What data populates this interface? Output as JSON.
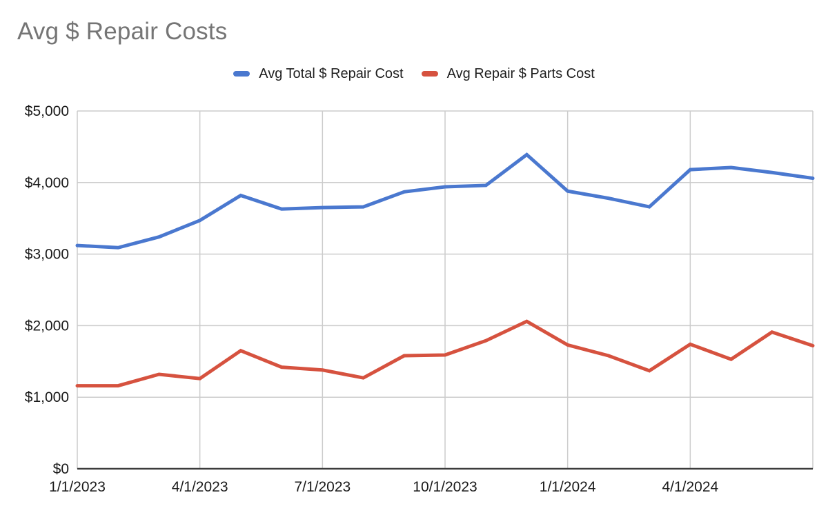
{
  "header": {
    "title": "Avg $ Repair Costs"
  },
  "styles": {
    "background": "#ffffff",
    "title_color": "#757575",
    "axis_label_color": "#1a1a1a",
    "gridline_color": "#cccccc",
    "axis_line_color": "#3c3c3c"
  },
  "chart_data": {
    "type": "line",
    "title": "Avg $ Repair Costs",
    "x": [
      "1/1/2023",
      "2/1/2023",
      "3/1/2023",
      "4/1/2023",
      "5/1/2023",
      "6/1/2023",
      "7/1/2023",
      "8/1/2023",
      "9/1/2023",
      "10/1/2023",
      "11/1/2023",
      "12/1/2023",
      "1/1/2024",
      "2/1/2024",
      "3/1/2024",
      "4/1/2024",
      "5/1/2024",
      "6/1/2024",
      "7/1/2024"
    ],
    "series": [
      {
        "name": "Avg Total $ Repair Cost",
        "color": "#4a78cf",
        "values": [
          3120,
          3090,
          3240,
          3470,
          3820,
          3630,
          3650,
          3660,
          3870,
          3940,
          3960,
          4390,
          3880,
          3780,
          3660,
          4180,
          4210,
          4140,
          4060
        ]
      },
      {
        "name": "Avg Repair $ Parts Cost",
        "color": "#d6523f",
        "values": [
          1160,
          1160,
          1320,
          1260,
          1650,
          1420,
          1380,
          1270,
          1580,
          1590,
          1790,
          2060,
          1730,
          1580,
          1370,
          1740,
          1530,
          1910,
          1720
        ]
      }
    ],
    "xlabel": "",
    "ylabel": "",
    "ylim": [
      0,
      5000
    ],
    "y_ticks": [
      {
        "value": 0,
        "label": "$0"
      },
      {
        "value": 1000,
        "label": "$1,000"
      },
      {
        "value": 2000,
        "label": "$2,000"
      },
      {
        "value": 3000,
        "label": "$3,000"
      },
      {
        "value": 4000,
        "label": "$4,000"
      },
      {
        "value": 5000,
        "label": "$5,000"
      }
    ],
    "x_ticks": [
      {
        "index": 0,
        "label": "1/1/2023"
      },
      {
        "index": 3,
        "label": "4/1/2023"
      },
      {
        "index": 6,
        "label": "7/1/2023"
      },
      {
        "index": 9,
        "label": "10/1/2023"
      },
      {
        "index": 12,
        "label": "1/1/2024"
      },
      {
        "index": 15,
        "label": "4/1/2024"
      }
    ],
    "v_gridline_indices": [
      0,
      3,
      6,
      9,
      12,
      15,
      18
    ],
    "grid": true,
    "legend_position": "top"
  }
}
